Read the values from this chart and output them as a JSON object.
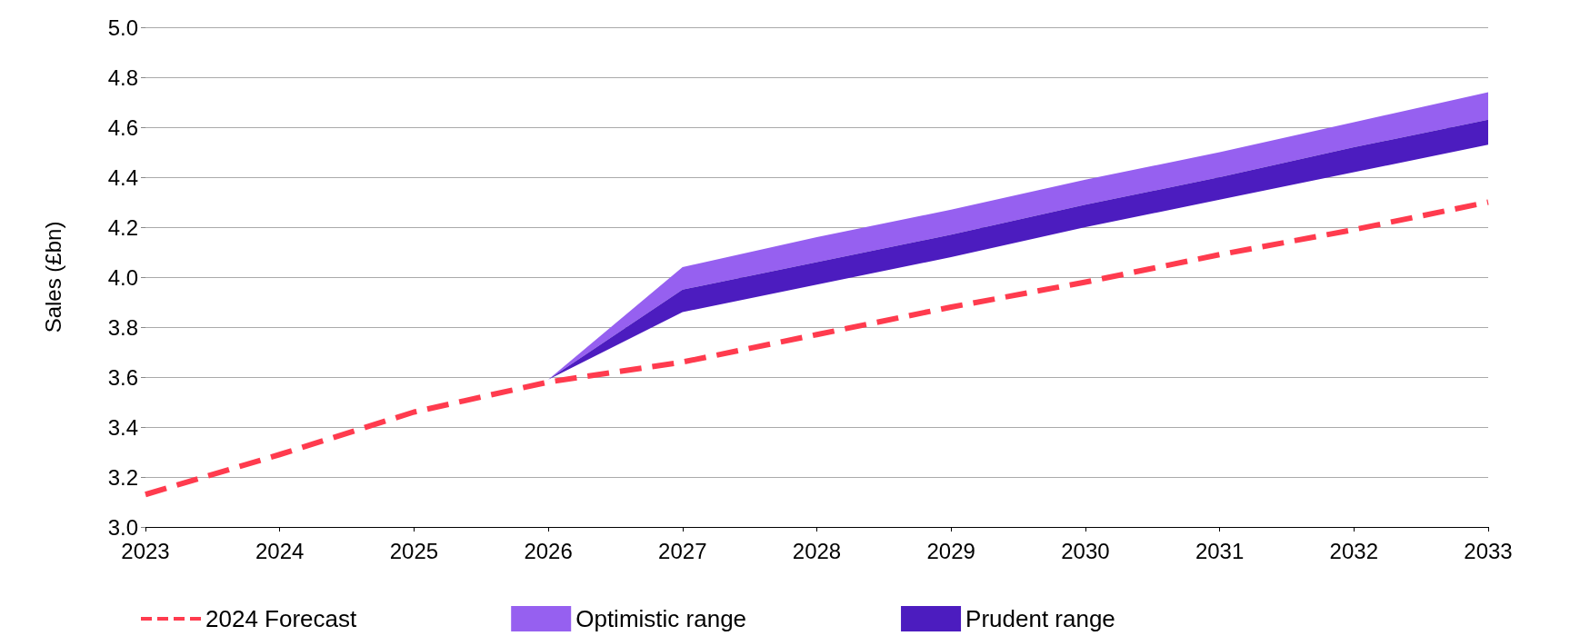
{
  "chart_data": {
    "type": "line",
    "ylabel": "Sales (£bn)",
    "categories": [
      "2023",
      "2024",
      "2025",
      "2026",
      "2027",
      "2028",
      "2029",
      "2030",
      "2031",
      "2032",
      "2033"
    ],
    "series": [
      {
        "name": "2024 Forecast",
        "type": "line",
        "color": "#ff3b4e",
        "line_style": "dashed",
        "values": [
          3.13,
          3.29,
          3.46,
          3.58,
          3.66,
          3.77,
          3.88,
          3.98,
          4.09,
          4.19,
          4.3
        ]
      },
      {
        "name": "Optimistic range",
        "type": "area",
        "color": "#9660f0",
        "lower": [
          null,
          null,
          null,
          3.59,
          3.95,
          4.06,
          4.17,
          4.29,
          4.4,
          4.52,
          4.63
        ],
        "upper": [
          null,
          null,
          null,
          3.59,
          4.04,
          4.16,
          4.27,
          4.39,
          4.5,
          4.62,
          4.74
        ],
        "values": [
          null,
          null,
          null,
          null,
          null,
          null,
          null,
          null,
          null,
          null,
          null
        ]
      },
      {
        "name": "Prudent range",
        "type": "area",
        "color": "#4c1cbf",
        "lower": [
          null,
          null,
          null,
          3.59,
          3.86,
          3.97,
          4.08,
          4.2,
          4.31,
          4.42,
          4.53
        ],
        "upper": [
          null,
          null,
          null,
          3.59,
          3.95,
          4.06,
          4.17,
          4.29,
          4.4,
          4.52,
          4.63
        ],
        "values": [
          null,
          null,
          null,
          null,
          null,
          null,
          null,
          null,
          null,
          null,
          null
        ]
      }
    ],
    "ylim": [
      3.0,
      5.0
    ],
    "yticks": [
      {
        "value": 3.0,
        "label": "3.0"
      },
      {
        "value": 3.2,
        "label": "3.2"
      },
      {
        "value": 3.4,
        "label": "3.4"
      },
      {
        "value": 3.6,
        "label": "3.6"
      },
      {
        "value": 3.8,
        "label": "3.8"
      },
      {
        "value": 4.0,
        "label": "4.0"
      },
      {
        "value": 4.2,
        "label": "4.2"
      },
      {
        "value": 4.4,
        "label": "4.4"
      },
      {
        "value": 4.6,
        "label": "4.6"
      },
      {
        "value": 4.8,
        "label": "4.8"
      },
      {
        "value": 5.0,
        "label": "5.0"
      }
    ],
    "grid": "y",
    "legend": "bottom",
    "marker": "none"
  }
}
